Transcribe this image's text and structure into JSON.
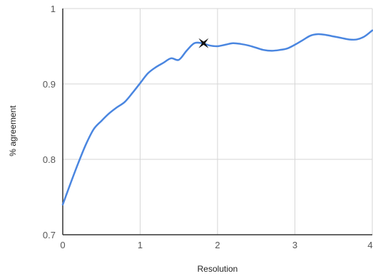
{
  "chart_data": {
    "type": "line",
    "title": "",
    "xlabel": "Resolution",
    "ylabel": "% agreement",
    "xlim": [
      0,
      4
    ],
    "ylim": [
      0.7,
      1.0
    ],
    "x_ticks": [
      0,
      1,
      2,
      3,
      4
    ],
    "x_tick_labels": [
      "0",
      "1",
      "2",
      "3",
      "4"
    ],
    "y_ticks": [
      0.7,
      0.8,
      0.9,
      1.0
    ],
    "y_tick_labels": [
      "0.7",
      "0.8",
      "0.9",
      "1"
    ],
    "grid": true,
    "legend": "none",
    "series": [
      {
        "color": "#4a86e0",
        "x": [
          0,
          0.1,
          0.2,
          0.3,
          0.4,
          0.5,
          0.6,
          0.7,
          0.8,
          0.9,
          1.0,
          1.1,
          1.2,
          1.3,
          1.4,
          1.5,
          1.6,
          1.7,
          1.8,
          1.9,
          2.0,
          2.1,
          2.2,
          2.3,
          2.4,
          2.5,
          2.6,
          2.7,
          2.8,
          2.9,
          3.0,
          3.1,
          3.2,
          3.3,
          3.4,
          3.5,
          3.6,
          3.7,
          3.8,
          3.9,
          4.0
        ],
        "y": [
          0.74,
          0.768,
          0.795,
          0.82,
          0.84,
          0.851,
          0.861,
          0.869,
          0.876,
          0.888,
          0.901,
          0.914,
          0.922,
          0.928,
          0.934,
          0.932,
          0.944,
          0.954,
          0.954,
          0.951,
          0.95,
          0.952,
          0.954,
          0.953,
          0.951,
          0.948,
          0.945,
          0.944,
          0.945,
          0.947,
          0.952,
          0.958,
          0.964,
          0.966,
          0.965,
          0.963,
          0.961,
          0.959,
          0.959,
          0.963,
          0.971
        ]
      }
    ],
    "marker": {
      "x": 1.82,
      "y": 0.954,
      "symbol": "star-x",
      "color": "#111111"
    }
  }
}
